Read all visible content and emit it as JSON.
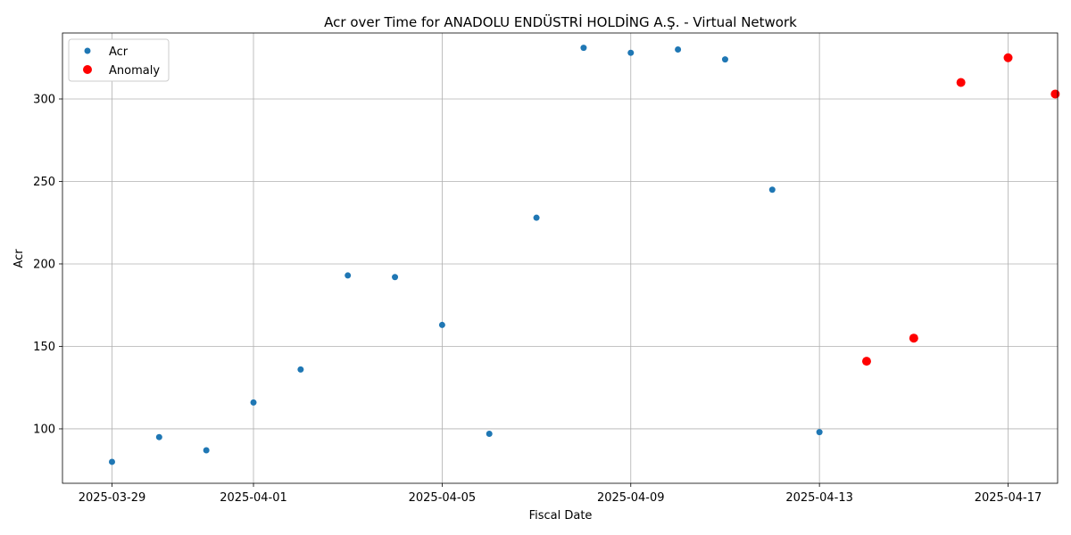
{
  "chart_data": {
    "type": "scatter",
    "title": "Acr over Time for ANADOLU ENDÜSTRİ HOLDİNG A.Ş. - Virtual Network",
    "xlabel": "Fiscal Date",
    "ylabel": "Acr",
    "x_type": "date",
    "xlim": [
      "2025-03-28",
      "2025-04-18"
    ],
    "ylim": [
      67,
      340
    ],
    "xticks": [
      "2025-03-29",
      "2025-04-01",
      "2025-04-05",
      "2025-04-09",
      "2025-04-13",
      "2025-04-17"
    ],
    "yticks": [
      100,
      150,
      200,
      250,
      300
    ],
    "grid": true,
    "legend_position": "top-left",
    "series": [
      {
        "name": "Acr",
        "color": "#1f77b4",
        "points": [
          {
            "x": "2025-03-29",
            "y": 80
          },
          {
            "x": "2025-03-30",
            "y": 95
          },
          {
            "x": "2025-03-31",
            "y": 87
          },
          {
            "x": "2025-04-01",
            "y": 116
          },
          {
            "x": "2025-04-02",
            "y": 136
          },
          {
            "x": "2025-04-03",
            "y": 193
          },
          {
            "x": "2025-04-04",
            "y": 192
          },
          {
            "x": "2025-04-05",
            "y": 163
          },
          {
            "x": "2025-04-06",
            "y": 97
          },
          {
            "x": "2025-04-07",
            "y": 228
          },
          {
            "x": "2025-04-08",
            "y": 331
          },
          {
            "x": "2025-04-09",
            "y": 328
          },
          {
            "x": "2025-04-10",
            "y": 330
          },
          {
            "x": "2025-04-11",
            "y": 324
          },
          {
            "x": "2025-04-12",
            "y": 245
          },
          {
            "x": "2025-04-13",
            "y": 98
          },
          {
            "x": "2025-04-14",
            "y": 141
          },
          {
            "x": "2025-04-15",
            "y": 155
          },
          {
            "x": "2025-04-16",
            "y": 310
          },
          {
            "x": "2025-04-17",
            "y": 325
          },
          {
            "x": "2025-04-18",
            "y": 303
          }
        ]
      },
      {
        "name": "Anomaly",
        "color": "#ff0000",
        "points": [
          {
            "x": "2025-04-14",
            "y": 141
          },
          {
            "x": "2025-04-15",
            "y": 155
          },
          {
            "x": "2025-04-16",
            "y": 310
          },
          {
            "x": "2025-04-17",
            "y": 325
          },
          {
            "x": "2025-04-18",
            "y": 303
          }
        ]
      }
    ]
  }
}
